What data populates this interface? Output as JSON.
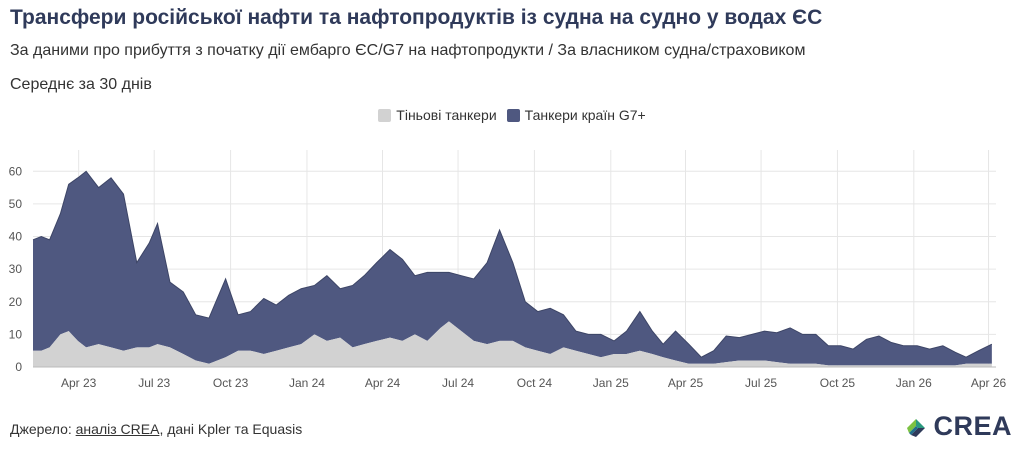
{
  "header": {
    "title": "Трансфери російської нафти та нафтопродуктів із судна на судно у водах ЄС",
    "subtitle": "За даними про прибуття з початку дії ембарго ЄС/G7 на нафтопродукти / За власником судна/страховиком",
    "note": "Середнє за 30 днів"
  },
  "source": {
    "prefix": "Джерело: ",
    "link_text": "аналіз CREA",
    "suffix": ", дані Kpler та Equasis"
  },
  "logo": {
    "text": "CREA",
    "icon": "crea-leaf-icon"
  },
  "colors": {
    "shadow": "#d2d2d2",
    "g7": "#4f5880",
    "grid": "#e6e6e6",
    "axis": "#555555"
  },
  "chart_data": {
    "type": "area",
    "stacked": true,
    "title": "Трансфери російської нафти та нафтопродуктів із судна на судно у водах ЄС",
    "ylim": [
      0,
      65
    ],
    "yticks": [
      0,
      10,
      20,
      30,
      40,
      50,
      60
    ],
    "x_range": [
      "2023-02-05",
      "2026-04-10"
    ],
    "xticks": [
      {
        "date": "2023-04-01",
        "label": "Apr 23"
      },
      {
        "date": "2023-07-01",
        "label": "Jul 23"
      },
      {
        "date": "2023-10-01",
        "label": "Oct 23"
      },
      {
        "date": "2024-01-01",
        "label": "Jan 24"
      },
      {
        "date": "2024-04-01",
        "label": "Apr 24"
      },
      {
        "date": "2024-07-01",
        "label": "Jul 24"
      },
      {
        "date": "2024-10-01",
        "label": "Oct 24"
      },
      {
        "date": "2025-01-01",
        "label": "Jan 25"
      },
      {
        "date": "2025-04-01",
        "label": "Apr 25"
      },
      {
        "date": "2025-07-01",
        "label": "Jul 25"
      },
      {
        "date": "2025-10-01",
        "label": "Oct 25"
      },
      {
        "date": "2026-01-01",
        "label": "Jan 26"
      },
      {
        "date": "2026-04-01",
        "label": "Apr 26"
      }
    ],
    "series": [
      {
        "name": "Тіньові танкери",
        "color": "#d2d2d2",
        "points": [
          [
            "2023-02-05",
            5
          ],
          [
            "2023-02-15",
            5
          ],
          [
            "2023-02-25",
            6
          ],
          [
            "2023-03-10",
            10
          ],
          [
            "2023-03-20",
            11
          ],
          [
            "2023-03-31",
            8
          ],
          [
            "2023-04-10",
            6
          ],
          [
            "2023-04-25",
            7
          ],
          [
            "2023-05-10",
            6
          ],
          [
            "2023-05-25",
            5
          ],
          [
            "2023-06-10",
            6
          ],
          [
            "2023-06-25",
            6
          ],
          [
            "2023-07-05",
            7
          ],
          [
            "2023-07-20",
            6
          ],
          [
            "2023-08-05",
            4
          ],
          [
            "2023-08-20",
            2
          ],
          [
            "2023-09-05",
            1
          ],
          [
            "2023-09-25",
            3
          ],
          [
            "2023-10-10",
            5
          ],
          [
            "2023-10-25",
            5
          ],
          [
            "2023-11-10",
            4
          ],
          [
            "2023-11-25",
            5
          ],
          [
            "2023-12-10",
            6
          ],
          [
            "2023-12-25",
            7
          ],
          [
            "2024-01-10",
            10
          ],
          [
            "2024-01-25",
            8
          ],
          [
            "2024-02-10",
            9
          ],
          [
            "2024-02-25",
            6
          ],
          [
            "2024-03-10",
            7
          ],
          [
            "2024-03-25",
            8
          ],
          [
            "2024-04-10",
            9
          ],
          [
            "2024-04-25",
            8
          ],
          [
            "2024-05-10",
            10
          ],
          [
            "2024-05-25",
            8
          ],
          [
            "2024-06-10",
            12
          ],
          [
            "2024-06-20",
            14
          ],
          [
            "2024-07-05",
            11
          ],
          [
            "2024-07-20",
            8
          ],
          [
            "2024-08-05",
            7
          ],
          [
            "2024-08-20",
            8
          ],
          [
            "2024-09-05",
            8
          ],
          [
            "2024-09-20",
            6
          ],
          [
            "2024-10-05",
            5
          ],
          [
            "2024-10-20",
            4
          ],
          [
            "2024-11-05",
            6
          ],
          [
            "2024-11-20",
            5
          ],
          [
            "2024-12-05",
            4
          ],
          [
            "2024-12-20",
            3
          ],
          [
            "2025-01-05",
            4
          ],
          [
            "2025-01-20",
            4
          ],
          [
            "2025-02-05",
            5
          ],
          [
            "2025-02-20",
            4
          ],
          [
            "2025-03-05",
            3
          ],
          [
            "2025-03-20",
            2
          ],
          [
            "2025-04-05",
            1
          ],
          [
            "2025-04-20",
            1
          ],
          [
            "2025-05-05",
            1
          ],
          [
            "2025-05-20",
            1.5
          ],
          [
            "2025-06-05",
            2
          ],
          [
            "2025-06-20",
            2
          ],
          [
            "2025-07-05",
            2
          ],
          [
            "2025-07-20",
            1.5
          ],
          [
            "2025-08-05",
            1
          ],
          [
            "2025-08-20",
            1
          ],
          [
            "2025-09-05",
            1
          ],
          [
            "2025-09-20",
            0.5
          ],
          [
            "2025-10-05",
            0.5
          ],
          [
            "2025-10-20",
            0.5
          ],
          [
            "2025-11-05",
            0.5
          ],
          [
            "2025-11-20",
            0.5
          ],
          [
            "2025-12-05",
            0.5
          ],
          [
            "2025-12-20",
            0.5
          ],
          [
            "2026-01-05",
            0.5
          ],
          [
            "2026-01-20",
            0.5
          ],
          [
            "2026-02-05",
            0.5
          ],
          [
            "2026-02-20",
            0.5
          ],
          [
            "2026-03-05",
            1
          ],
          [
            "2026-03-20",
            1
          ],
          [
            "2026-04-05",
            1
          ]
        ]
      },
      {
        "name": "Танкери країн G7+",
        "color": "#4f5880",
        "points": [
          [
            "2023-02-05",
            34
          ],
          [
            "2023-02-15",
            35
          ],
          [
            "2023-02-25",
            33
          ],
          [
            "2023-03-10",
            37
          ],
          [
            "2023-03-20",
            45
          ],
          [
            "2023-03-31",
            50
          ],
          [
            "2023-04-10",
            54
          ],
          [
            "2023-04-25",
            48
          ],
          [
            "2023-05-10",
            52
          ],
          [
            "2023-05-25",
            48
          ],
          [
            "2023-06-10",
            26
          ],
          [
            "2023-06-25",
            32
          ],
          [
            "2023-07-05",
            37
          ],
          [
            "2023-07-20",
            20
          ],
          [
            "2023-08-05",
            19
          ],
          [
            "2023-08-20",
            14
          ],
          [
            "2023-09-05",
            14
          ],
          [
            "2023-09-25",
            24
          ],
          [
            "2023-10-10",
            11
          ],
          [
            "2023-10-25",
            12
          ],
          [
            "2023-11-10",
            17
          ],
          [
            "2023-11-25",
            14
          ],
          [
            "2023-12-10",
            16
          ],
          [
            "2023-12-25",
            17
          ],
          [
            "2024-01-10",
            15
          ],
          [
            "2024-01-25",
            20
          ],
          [
            "2024-02-10",
            15
          ],
          [
            "2024-02-25",
            19
          ],
          [
            "2024-03-10",
            21
          ],
          [
            "2024-03-25",
            24
          ],
          [
            "2024-04-10",
            27
          ],
          [
            "2024-04-25",
            25
          ],
          [
            "2024-05-10",
            18
          ],
          [
            "2024-05-25",
            21
          ],
          [
            "2024-06-10",
            17
          ],
          [
            "2024-06-20",
            15
          ],
          [
            "2024-07-05",
            17
          ],
          [
            "2024-07-20",
            19
          ],
          [
            "2024-08-05",
            25
          ],
          [
            "2024-08-20",
            34
          ],
          [
            "2024-09-05",
            24
          ],
          [
            "2024-09-20",
            14
          ],
          [
            "2024-10-05",
            12
          ],
          [
            "2024-10-20",
            14
          ],
          [
            "2024-11-05",
            10
          ],
          [
            "2024-11-20",
            6
          ],
          [
            "2024-12-05",
            6
          ],
          [
            "2024-12-20",
            7
          ],
          [
            "2025-01-05",
            4
          ],
          [
            "2025-01-20",
            7
          ],
          [
            "2025-02-05",
            12
          ],
          [
            "2025-02-20",
            7
          ],
          [
            "2025-03-05",
            4
          ],
          [
            "2025-03-20",
            9
          ],
          [
            "2025-04-05",
            6
          ],
          [
            "2025-04-20",
            2
          ],
          [
            "2025-05-05",
            4
          ],
          [
            "2025-05-20",
            8
          ],
          [
            "2025-06-05",
            7
          ],
          [
            "2025-06-20",
            8
          ],
          [
            "2025-07-05",
            9
          ],
          [
            "2025-07-20",
            9
          ],
          [
            "2025-08-05",
            11
          ],
          [
            "2025-08-20",
            9
          ],
          [
            "2025-09-05",
            9
          ],
          [
            "2025-09-20",
            6
          ],
          [
            "2025-10-05",
            6
          ],
          [
            "2025-10-20",
            5
          ],
          [
            "2025-11-05",
            8
          ],
          [
            "2025-11-20",
            9
          ],
          [
            "2025-12-05",
            7
          ],
          [
            "2025-12-20",
            6
          ],
          [
            "2026-01-05",
            6
          ],
          [
            "2026-01-20",
            5
          ],
          [
            "2026-02-05",
            6
          ],
          [
            "2026-02-20",
            4
          ],
          [
            "2026-03-05",
            2
          ],
          [
            "2026-03-20",
            4
          ],
          [
            "2026-04-05",
            6
          ]
        ]
      }
    ]
  }
}
